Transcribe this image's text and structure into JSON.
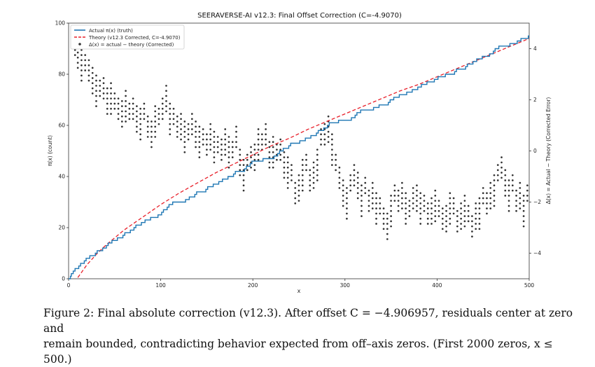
{
  "chart_data": {
    "type": "line",
    "title": "SEERAVERSE-AI v12.3: Final Offset Correction (C=-4.9070)",
    "xlabel": "x",
    "ylabel_left": "π(x) (count)",
    "ylabel_right": "Δ(x) = Actual − Theory (Corrected Error)",
    "xlim": [
      0,
      500
    ],
    "ylim_left": [
      0,
      100
    ],
    "ylim_right": [
      -5.0,
      5.0
    ],
    "x_ticks": [
      0,
      100,
      200,
      300,
      400,
      500
    ],
    "y_ticks_left": [
      0,
      20,
      40,
      60,
      80,
      100
    ],
    "y_ticks_right": [
      -4,
      -2,
      0,
      2,
      4
    ],
    "legend_position": "upper-left",
    "series": [
      {
        "name": "Actual π(x) (truth)",
        "style": "step",
        "color": "#1f77b4",
        "x": [
          0,
          2,
          3,
          5,
          7,
          11,
          13,
          17,
          19,
          23,
          29,
          31,
          37,
          41,
          43,
          47,
          53,
          59,
          61,
          67,
          71,
          73,
          79,
          83,
          89,
          97,
          101,
          103,
          107,
          109,
          113,
          127,
          131,
          137,
          139,
          149,
          151,
          157,
          163,
          167,
          173,
          179,
          181,
          191,
          193,
          197,
          199,
          211,
          223,
          227,
          229,
          233,
          239,
          241,
          251,
          257,
          263,
          269,
          271,
          277,
          281,
          283,
          293,
          307,
          311,
          313,
          317,
          331,
          337,
          347,
          349,
          353,
          359,
          367,
          373,
          379,
          383,
          389,
          397,
          401,
          409,
          419,
          421,
          431,
          433,
          439,
          443,
          449,
          457,
          461,
          463,
          467,
          479,
          487,
          491,
          499,
          500
        ],
        "values": [
          0,
          1,
          2,
          3,
          4,
          5,
          6,
          7,
          8,
          9,
          10,
          11,
          12,
          13,
          14,
          15,
          16,
          17,
          18,
          19,
          20,
          21,
          22,
          23,
          24,
          25,
          26,
          27,
          28,
          29,
          30,
          31,
          32,
          33,
          34,
          35,
          36,
          37,
          38,
          39,
          40,
          41,
          42,
          43,
          44,
          45,
          46,
          47,
          48,
          49,
          50,
          51,
          52,
          53,
          54,
          55,
          56,
          57,
          58,
          59,
          60,
          61,
          62,
          63,
          64,
          65,
          66,
          67,
          68,
          69,
          70,
          71,
          72,
          73,
          74,
          75,
          76,
          77,
          78,
          79,
          80,
          81,
          82,
          83,
          84,
          85,
          86,
          87,
          88,
          89,
          90,
          91,
          92,
          93,
          94,
          95,
          95
        ]
      },
      {
        "name": "Theory (v12.3 Corrected, C=-4.9070)",
        "style": "dashed",
        "color": "#e8202a",
        "x": [
          10,
          20,
          30,
          40,
          50,
          60,
          70,
          80,
          90,
          100,
          120,
          140,
          160,
          180,
          200,
          220,
          240,
          260,
          280,
          300,
          320,
          340,
          360,
          380,
          400,
          420,
          440,
          460,
          480,
          500
        ],
        "values": [
          0.5,
          5.5,
          9.5,
          13.0,
          16.0,
          19.0,
          21.5,
          24.0,
          26.5,
          29.0,
          33.5,
          37.5,
          41.5,
          45.0,
          48.5,
          52.0,
          55.0,
          58.5,
          61.5,
          64.5,
          67.5,
          70.5,
          73.5,
          76.0,
          79.0,
          82.0,
          85.0,
          88.0,
          91.0,
          94.0
        ]
      },
      {
        "name": "Δ(x) = actual − theory (Corrected)",
        "style": "dots",
        "color": "#333333",
        "axis": "right",
        "x": [
          4,
          7,
          10,
          14,
          18,
          22,
          26,
          30,
          34,
          38,
          42,
          46,
          50,
          54,
          58,
          62,
          66,
          70,
          74,
          78,
          82,
          86,
          90,
          94,
          98,
          102,
          106,
          110,
          114,
          118,
          122,
          126,
          130,
          134,
          138,
          142,
          146,
          150,
          154,
          158,
          162,
          166,
          170,
          174,
          178,
          182,
          186,
          190,
          194,
          198,
          202,
          206,
          210,
          214,
          218,
          222,
          226,
          230,
          234,
          238,
          242,
          246,
          250,
          254,
          258,
          262,
          266,
          270,
          274,
          278,
          282,
          286,
          290,
          294,
          298,
          302,
          306,
          310,
          314,
          318,
          322,
          326,
          330,
          334,
          338,
          342,
          346,
          350,
          354,
          358,
          362,
          366,
          370,
          374,
          378,
          382,
          386,
          390,
          394,
          398,
          402,
          406,
          410,
          414,
          418,
          422,
          426,
          430,
          434,
          438,
          442,
          446,
          450,
          454,
          458,
          462,
          466,
          470,
          474,
          478,
          482,
          486,
          490,
          494,
          498
        ],
        "values": [
          4.6,
          4.3,
          4.0,
          3.7,
          3.5,
          3.3,
          3.0,
          2.7,
          2.5,
          2.6,
          2.2,
          2.4,
          2.0,
          1.8,
          1.7,
          2.1,
          1.6,
          1.8,
          1.5,
          1.4,
          1.6,
          1.1,
          0.9,
          1.5,
          1.4,
          1.8,
          2.3,
          1.6,
          1.4,
          1.1,
          1.2,
          0.9,
          0.8,
          1.2,
          0.9,
          0.7,
          0.6,
          0.4,
          0.8,
          0.5,
          0.3,
          0.2,
          0.6,
          0.3,
          0.1,
          0.7,
          -0.2,
          -0.6,
          -0.4,
          -0.1,
          0.0,
          0.6,
          0.4,
          0.8,
          0.1,
          0.3,
          0.0,
          0.2,
          -0.3,
          -0.5,
          -0.8,
          -1.5,
          -1.2,
          -0.6,
          -0.4,
          -1.0,
          -0.7,
          -0.2,
          0.6,
          0.8,
          1.1,
          0.4,
          -0.4,
          -0.9,
          -1.4,
          -1.7,
          -1.2,
          -0.8,
          -1.1,
          -1.6,
          -1.3,
          -1.8,
          -1.5,
          -1.9,
          -2.1,
          -2.5,
          -2.7,
          -2.0,
          -1.6,
          -1.8,
          -1.5,
          -1.9,
          -2.2,
          -1.7,
          -1.6,
          -1.9,
          -2.0,
          -2.3,
          -2.1,
          -1.8,
          -2.2,
          -2.5,
          -2.4,
          -1.9,
          -2.1,
          -2.6,
          -2.3,
          -2.0,
          -2.4,
          -2.8,
          -2.3,
          -2.1,
          -1.7,
          -1.9,
          -1.5,
          -1.2,
          -0.8,
          -0.5,
          -1.0,
          -1.4,
          -1.2,
          -1.8,
          -1.5,
          -2.0,
          -1.6
        ]
      }
    ]
  },
  "caption": {
    "line1": "Figure 2: Final absolute correction (v12.3). After offset C = −4.906957, residuals center at zero and",
    "line2": "remain bounded, contradicting behavior expected from off–axis zeros. (First 2000 zeros, x ≤ 500.)"
  }
}
